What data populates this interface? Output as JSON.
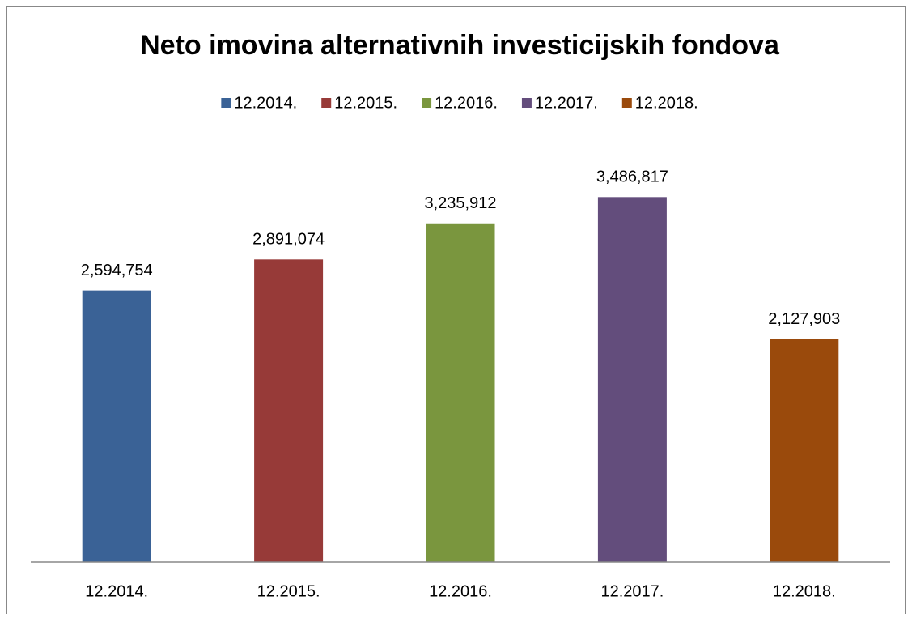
{
  "chart_data": {
    "type": "bar",
    "title": "Neto imovina alternativnih investicijskih fondova",
    "categories": [
      "12.2014.",
      "12.2015.",
      "12.2016.",
      "12.2017.",
      "12.2018."
    ],
    "values": [
      2594754,
      2891074,
      3235912,
      3486817,
      2127903
    ],
    "value_labels": [
      "2,594,754",
      "2,891,074",
      "3,235,912",
      "3,486,817",
      "2,127,903"
    ],
    "colors": [
      "#3a6296",
      "#973a38",
      "#7a963e",
      "#634d7c",
      "#9a4a0c"
    ],
    "ylim": [
      0,
      4000000
    ],
    "legend": "top"
  }
}
